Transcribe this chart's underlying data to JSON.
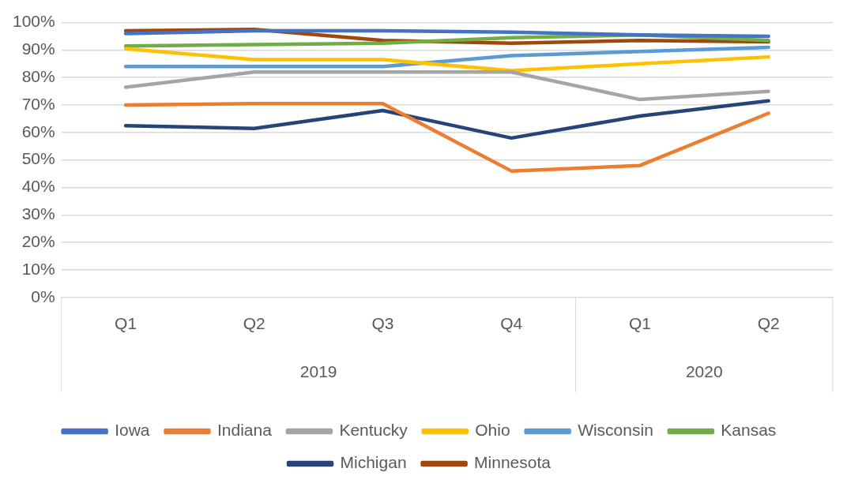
{
  "chart_data": {
    "type": "line",
    "categories": [
      "Q1",
      "Q2",
      "Q3",
      "Q4",
      "Q1",
      "Q2"
    ],
    "annotations": [
      "2019",
      "2020"
    ],
    "ylim": [
      0,
      100
    ],
    "yticks": [
      {
        "value": 0,
        "label": "0%"
      },
      {
        "value": 10,
        "label": "10%"
      },
      {
        "value": 20,
        "label": "20%"
      },
      {
        "value": 30,
        "label": "30%"
      },
      {
        "value": 40,
        "label": "40%"
      },
      {
        "value": 50,
        "label": "50%"
      },
      {
        "value": 60,
        "label": "60%"
      },
      {
        "value": 70,
        "label": "70%"
      },
      {
        "value": 80,
        "label": "80%"
      },
      {
        "value": 90,
        "label": "90%"
      },
      {
        "value": 100,
        "label": "100%"
      }
    ],
    "grid": "y",
    "legend": "bottom",
    "marker": "none",
    "line_style": "solid",
    "series": [
      {
        "name": "Iowa",
        "color": "#4472c4",
        "values": [
          96,
          97,
          97,
          96.5,
          95.5,
          95
        ]
      },
      {
        "name": "Indiana",
        "color": "#ed7d31",
        "values": [
          70,
          70.5,
          70.5,
          46,
          48,
          67
        ]
      },
      {
        "name": "Kentucky",
        "color": "#a5a5a5",
        "values": [
          76.5,
          82,
          82,
          82,
          72,
          75
        ]
      },
      {
        "name": "Ohio",
        "color": "#ffc000",
        "values": [
          90.5,
          86.5,
          86.5,
          82.5,
          85,
          87.5
        ]
      },
      {
        "name": "Wisconsin",
        "color": "#5b9bd5",
        "values": [
          84,
          84,
          84,
          88,
          89.5,
          91
        ]
      },
      {
        "name": "Kansas",
        "color": "#70ad47",
        "values": [
          91.5,
          92,
          92.5,
          94.5,
          95.5,
          93.5
        ]
      },
      {
        "name": "Michigan",
        "color": "#264478",
        "values": [
          62.5,
          61.5,
          68,
          58,
          66,
          71.5
        ]
      },
      {
        "name": "Minnesota",
        "color": "#9e480e",
        "values": [
          97,
          97.5,
          93.5,
          92.5,
          93.5,
          93
        ]
      }
    ]
  }
}
